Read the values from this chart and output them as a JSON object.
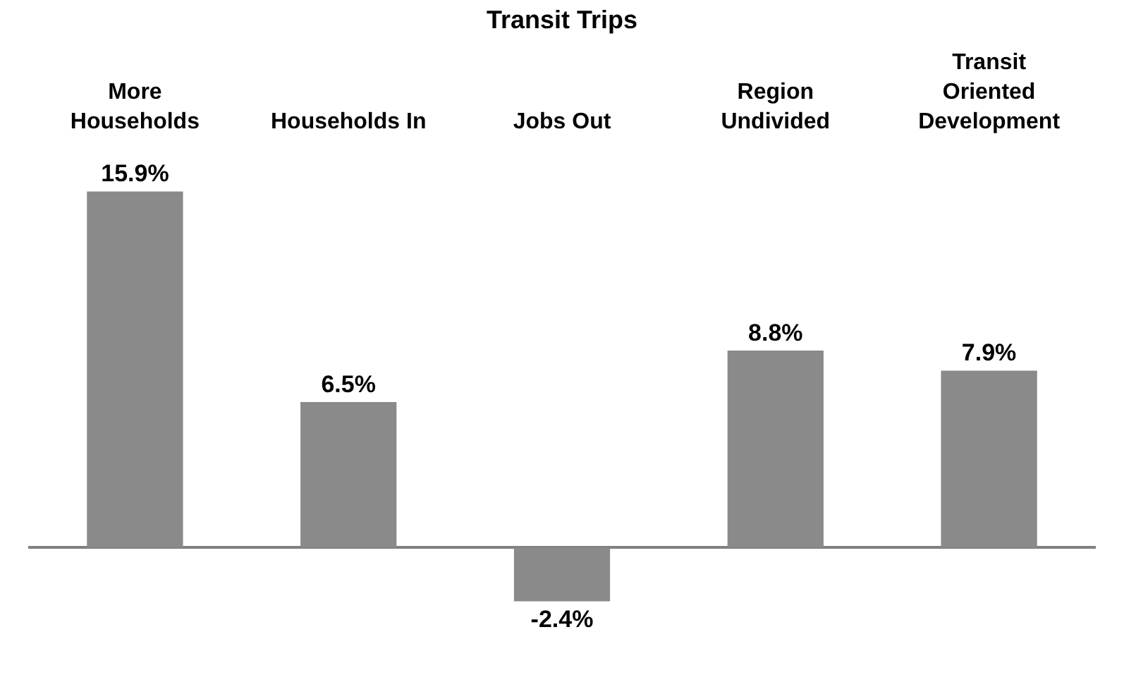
{
  "chart_data": {
    "type": "bar",
    "title": "Transit Trips",
    "categories": [
      "More Households",
      "Households In",
      "Jobs Out",
      "Region Undivided",
      "Transit Oriented Development"
    ],
    "values": [
      15.9,
      6.5,
      -2.4,
      8.8,
      7.9
    ],
    "value_labels": [
      "15.9%",
      "6.5%",
      "-2.4%",
      "8.8%",
      "7.9%"
    ],
    "color": "#8a8a8a",
    "legend": false
  }
}
